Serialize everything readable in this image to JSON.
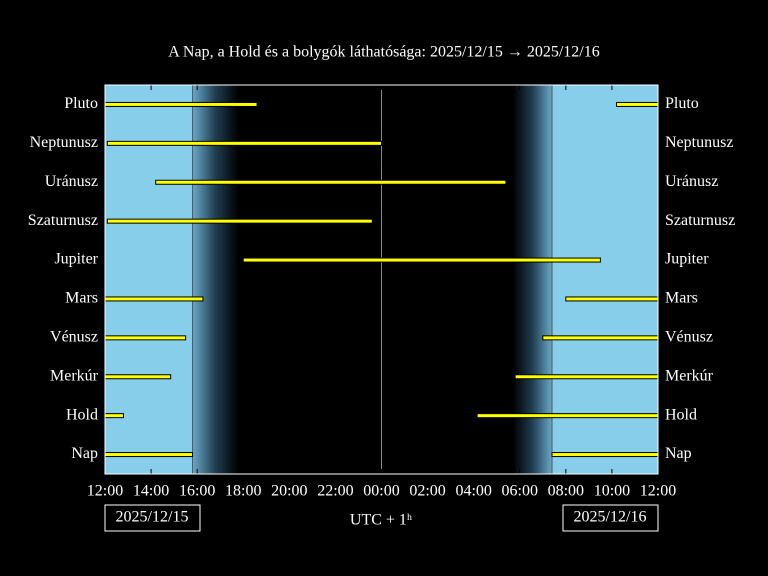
{
  "chart_data": {
    "type": "visibility",
    "title": "A Nap, a Hold és a bolygók láthatósága: 2025/12/15 → 2025/12/16",
    "xlabel": "UTC + 1ʰ",
    "start_date": "2025/12/15",
    "end_date": "2025/12/16",
    "xlim": [
      0,
      24
    ],
    "xticks": [
      {
        "value": 0,
        "label": "12:00"
      },
      {
        "value": 2,
        "label": "14:00"
      },
      {
        "value": 4,
        "label": "16:00"
      },
      {
        "value": 6,
        "label": "18:00"
      },
      {
        "value": 8,
        "label": "20:00"
      },
      {
        "value": 10,
        "label": "22:00"
      },
      {
        "value": 12,
        "label": "00:00"
      },
      {
        "value": 14,
        "label": "02:00"
      },
      {
        "value": 16,
        "label": "04:00"
      },
      {
        "value": 18,
        "label": "06:00"
      },
      {
        "value": 20,
        "label": "08:00"
      },
      {
        "value": 22,
        "label": "10:00"
      },
      {
        "value": 24,
        "label": "12:00"
      }
    ],
    "midnight": 12,
    "sunset": 3.8,
    "sunrise": 19.4,
    "twilight": [
      5.8,
      17.7
    ],
    "color": "#ffff00",
    "series": [
      {
        "name": "Pluto",
        "values": [
          [
            0,
            6.6
          ],
          [
            22.2,
            24
          ]
        ]
      },
      {
        "name": "Neptunusz",
        "values": [
          [
            0.1,
            12.0
          ]
        ]
      },
      {
        "name": "Uránusz",
        "values": [
          [
            2.2,
            17.4
          ]
        ]
      },
      {
        "name": "Szaturnusz",
        "values": [
          [
            0.1,
            11.6
          ]
        ]
      },
      {
        "name": "Jupiter",
        "values": [
          [
            6.0,
            21.5
          ]
        ]
      },
      {
        "name": "Mars",
        "values": [
          [
            0,
            4.25
          ],
          [
            20.0,
            24
          ]
        ]
      },
      {
        "name": "Vénusz",
        "values": [
          [
            0,
            3.5
          ],
          [
            19.0,
            24
          ]
        ]
      },
      {
        "name": "Merkúr",
        "values": [
          [
            0,
            2.85
          ],
          [
            17.8,
            24
          ]
        ]
      },
      {
        "name": "Hold",
        "values": [
          [
            0,
            0.8
          ],
          [
            16.15,
            24
          ]
        ]
      },
      {
        "name": "Nap",
        "values": [
          [
            0,
            3.8
          ],
          [
            19.4,
            24
          ]
        ]
      }
    ]
  }
}
